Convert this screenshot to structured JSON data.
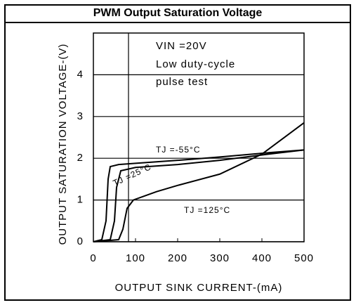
{
  "chart_data": {
    "type": "line",
    "title": "PWM Output Saturation Voltage",
    "xlabel": "OUTPUT SINK CURRENT-(mA)",
    "ylabel": "OUTPUT SATURATION VOLTAGE-(V)",
    "annotations": [
      "VIN =20V",
      "Low duty-cycle",
      "pulse test"
    ],
    "xlim": [
      0,
      500
    ],
    "xticks": [
      0,
      100,
      200,
      300,
      400,
      500
    ],
    "ylim": [
      0,
      5
    ],
    "yticks": [
      0,
      1,
      2,
      3,
      4
    ],
    "grid": true,
    "series": [
      {
        "name": "TJ =-55°C",
        "color": "#000000",
        "x": [
          0,
          20,
          30,
          35,
          40,
          60,
          100,
          200,
          300,
          400,
          500
        ],
        "values": [
          0,
          0.05,
          0.5,
          1.5,
          1.8,
          1.85,
          1.88,
          1.95,
          2.03,
          2.12,
          2.2
        ]
      },
      {
        "name": "TJ =25°C",
        "color": "#000000",
        "x": [
          0,
          40,
          50,
          55,
          65,
          100,
          200,
          300,
          400,
          500
        ],
        "values": [
          0,
          0.05,
          0.5,
          1.3,
          1.7,
          1.78,
          1.85,
          1.95,
          2.08,
          2.2
        ]
      },
      {
        "name": "TJ =125°C",
        "color": "#000000",
        "x": [
          0,
          60,
          70,
          80,
          95,
          150,
          200,
          300,
          400,
          500
        ],
        "values": [
          0,
          0.05,
          0.3,
          0.8,
          1.0,
          1.2,
          1.35,
          1.62,
          2.1,
          2.85
        ]
      }
    ]
  }
}
